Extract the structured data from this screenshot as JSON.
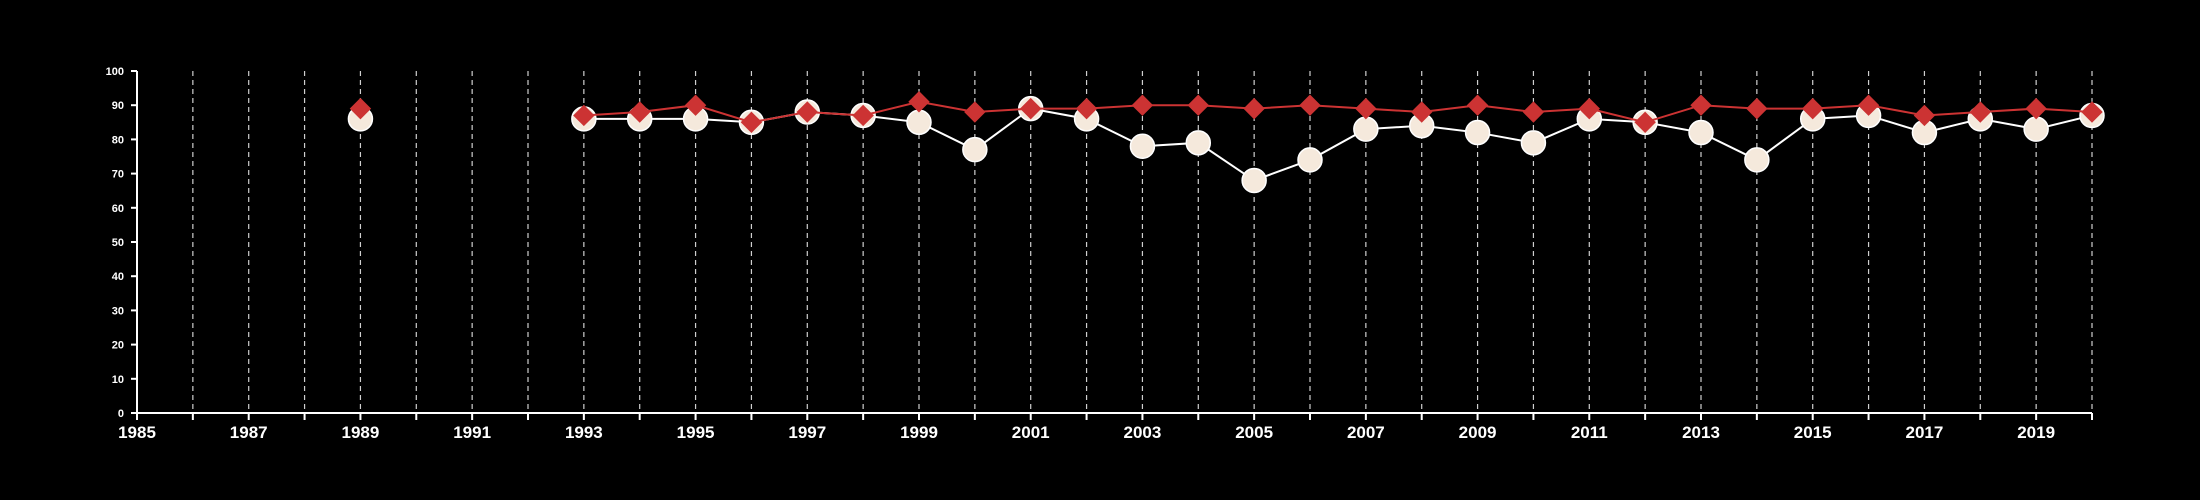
{
  "chart_data": {
    "type": "line",
    "title": "",
    "xlabel": "",
    "ylabel": "",
    "xlim": [
      1985,
      2020
    ],
    "ylim": [
      0,
      100
    ],
    "x_ticks": [
      1985,
      1987,
      1989,
      1991,
      1993,
      1995,
      1997,
      1999,
      2001,
      2003,
      2005,
      2007,
      2009,
      2011,
      2013,
      2015,
      2017,
      2019
    ],
    "y_ticks": [
      0,
      10,
      20,
      30,
      40,
      50,
      60,
      70,
      80,
      90,
      100
    ],
    "grid": "vertical dashed at every year",
    "legend": "none",
    "series": [
      {
        "marker": "circle",
        "color": "#f5e9dc",
        "line_color": "#ffffff",
        "points": [
          [
            1989,
            86
          ],
          [
            1993,
            86
          ],
          [
            1994,
            86
          ],
          [
            1995,
            86
          ],
          [
            1996,
            85
          ],
          [
            1997,
            88
          ],
          [
            1998,
            87
          ],
          [
            1999,
            85
          ],
          [
            2000,
            77
          ],
          [
            2001,
            89
          ],
          [
            2002,
            86
          ],
          [
            2003,
            78
          ],
          [
            2004,
            79
          ],
          [
            2005,
            68
          ],
          [
            2006,
            74
          ],
          [
            2007,
            83
          ],
          [
            2008,
            84
          ],
          [
            2009,
            82
          ],
          [
            2010,
            79
          ],
          [
            2011,
            86
          ],
          [
            2012,
            85
          ],
          [
            2013,
            82
          ],
          [
            2014,
            74
          ],
          [
            2015,
            86
          ],
          [
            2016,
            87
          ],
          [
            2017,
            82
          ],
          [
            2018,
            86
          ],
          [
            2019,
            83
          ],
          [
            2020,
            87
          ]
        ]
      },
      {
        "marker": "diamond",
        "color": "#cc3333",
        "line_color": "#cc3333",
        "points": [
          [
            1989,
            89
          ],
          [
            1993,
            87
          ],
          [
            1994,
            88
          ],
          [
            1995,
            90
          ],
          [
            1996,
            85
          ],
          [
            1997,
            88
          ],
          [
            1998,
            87
          ],
          [
            1999,
            91
          ],
          [
            2000,
            88
          ],
          [
            2001,
            89
          ],
          [
            2002,
            89
          ],
          [
            2003,
            90
          ],
          [
            2004,
            90
          ],
          [
            2005,
            89
          ],
          [
            2006,
            90
          ],
          [
            2007,
            89
          ],
          [
            2008,
            88
          ],
          [
            2009,
            90
          ],
          [
            2010,
            88
          ],
          [
            2011,
            89
          ],
          [
            2012,
            85
          ],
          [
            2013,
            90
          ],
          [
            2014,
            89
          ],
          [
            2015,
            89
          ],
          [
            2016,
            90
          ],
          [
            2017,
            87
          ],
          [
            2018,
            88
          ],
          [
            2019,
            89
          ],
          [
            2020,
            88
          ]
        ]
      }
    ]
  }
}
